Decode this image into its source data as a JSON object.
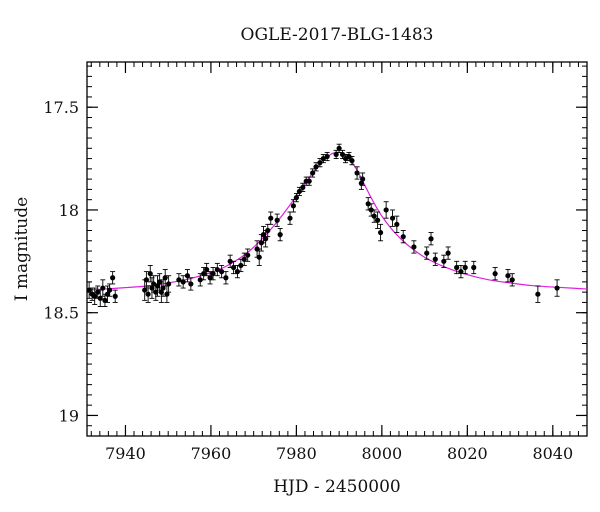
{
  "chart_data": {
    "type": "scatter",
    "title": "OGLE-2017-BLG-1483",
    "xlabel": "HJD - 2450000",
    "ylabel": "I magnitude",
    "xlim": [
      7931,
      8048
    ],
    "ylim": [
      19.1,
      17.28
    ],
    "y_inverted": true,
    "grid": false,
    "x_ticks": [
      7940,
      7960,
      7980,
      8000,
      8020,
      8040
    ],
    "x_tick_labels": [
      "7940",
      "7960",
      "7980",
      "8000",
      "8020",
      "8040"
    ],
    "y_ticks": [
      17.5,
      18,
      18.5,
      19
    ],
    "y_tick_labels": [
      "17.5",
      "18",
      "18.5",
      "19"
    ],
    "colors": {
      "points": "#000000",
      "model": "#e020e0",
      "axes": "#000000"
    },
    "series": [
      {
        "kind": "points_with_error_bars",
        "x": [
          7931.5,
          7932.2,
          7932.8,
          7933.5,
          7934.1,
          7934.7,
          7935.2,
          7935.8,
          7936.3,
          7937.0,
          7937.6,
          7944.5,
          7944.9,
          7945.3,
          7945.8,
          7946.2,
          7946.6,
          7947.1,
          7947.5,
          7948.0,
          7948.4,
          7948.8,
          7949.3,
          7949.7,
          7950.1,
          7952.5,
          7953.5,
          7954.5,
          7955.3,
          7957.5,
          7958.3,
          7959.0,
          7959.8,
          7960.5,
          7961.5,
          7962.5,
          7963.5,
          7964.5,
          7965.3,
          7966.2,
          7967.0,
          7967.8,
          7968.6,
          7970.8,
          7971.3,
          7971.8,
          7972.3,
          7972.8,
          7973.3,
          7974.0,
          7975.5,
          7976.2,
          7978.5,
          7979.3,
          7980.0,
          7980.7,
          7981.5,
          7982.3,
          7983.0,
          7983.8,
          7984.6,
          7985.5,
          7986.3,
          7987.2,
          7989.3,
          7990.0,
          7990.8,
          7991.5,
          7992.3,
          7993.0,
          7994.2,
          7995.2,
          7995.5,
          7996.8,
          7997.5,
          7998.2,
          7999.0,
          7999.7,
          8001.0,
          8002.5,
          8003.5,
          8005.0,
          8007.5,
          8010.5,
          8011.5,
          8012.5,
          8014.5,
          8015.5,
          8017.5,
          8018.5,
          8019.5,
          8021.5,
          8026.5,
          8029.5,
          8030.5,
          8036.5,
          8041.0
        ],
        "y": [
          18.39,
          18.41,
          18.42,
          18.4,
          18.43,
          18.38,
          18.44,
          18.41,
          18.39,
          18.33,
          18.42,
          18.39,
          18.34,
          18.41,
          18.31,
          18.38,
          18.36,
          18.4,
          18.37,
          18.35,
          18.4,
          18.38,
          18.33,
          18.41,
          18.36,
          18.34,
          18.35,
          18.32,
          18.36,
          18.34,
          18.31,
          18.29,
          18.33,
          18.31,
          18.29,
          18.3,
          18.33,
          18.25,
          18.28,
          18.3,
          18.27,
          18.24,
          18.22,
          18.19,
          18.23,
          18.16,
          18.12,
          18.14,
          18.1,
          18.04,
          18.05,
          18.12,
          18.04,
          17.98,
          17.94,
          17.91,
          17.89,
          17.86,
          17.86,
          17.82,
          17.79,
          17.77,
          17.75,
          17.74,
          17.73,
          17.7,
          17.73,
          17.75,
          17.74,
          17.76,
          17.82,
          17.87,
          17.85,
          17.97,
          18.0,
          18.03,
          18.05,
          18.11,
          18.0,
          18.04,
          18.07,
          18.13,
          18.18,
          18.21,
          18.14,
          18.24,
          18.25,
          18.21,
          18.28,
          18.3,
          18.28,
          18.28,
          18.31,
          18.32,
          18.34,
          18.41,
          18.38
        ],
        "err": [
          0.04,
          0.03,
          0.04,
          0.03,
          0.04,
          0.04,
          0.03,
          0.04,
          0.03,
          0.03,
          0.03,
          0.05,
          0.04,
          0.04,
          0.04,
          0.05,
          0.04,
          0.04,
          0.05,
          0.04,
          0.05,
          0.04,
          0.04,
          0.04,
          0.04,
          0.03,
          0.03,
          0.03,
          0.03,
          0.03,
          0.03,
          0.03,
          0.03,
          0.03,
          0.03,
          0.03,
          0.03,
          0.03,
          0.03,
          0.03,
          0.03,
          0.03,
          0.03,
          0.04,
          0.04,
          0.04,
          0.04,
          0.04,
          0.03,
          0.03,
          0.03,
          0.03,
          0.03,
          0.03,
          0.02,
          0.02,
          0.02,
          0.02,
          0.02,
          0.02,
          0.02,
          0.02,
          0.02,
          0.02,
          0.02,
          0.02,
          0.02,
          0.02,
          0.02,
          0.02,
          0.03,
          0.03,
          0.03,
          0.03,
          0.03,
          0.03,
          0.04,
          0.04,
          0.04,
          0.04,
          0.04,
          0.03,
          0.03,
          0.03,
          0.03,
          0.03,
          0.03,
          0.03,
          0.03,
          0.03,
          0.03,
          0.03,
          0.03,
          0.03,
          0.03,
          0.04,
          0.04
        ]
      },
      {
        "kind": "model_curve",
        "x": [
          7931,
          7935,
          7940,
          7945,
          7950,
          7955,
          7960,
          7963,
          7966,
          7969,
          7972,
          7975,
          7978,
          7980,
          7982,
          7984,
          7986,
          7988,
          7989,
          7990,
          7991,
          7992,
          7994,
          7996,
          7998,
          8000,
          8003,
          8006,
          8010,
          8015,
          8020,
          8025,
          8030,
          8035,
          8040,
          8045,
          8048
        ],
        "y": [
          18.39,
          18.385,
          18.378,
          18.37,
          18.355,
          18.335,
          18.305,
          18.28,
          18.245,
          18.2,
          18.14,
          18.07,
          17.99,
          17.93,
          17.87,
          17.815,
          17.765,
          17.73,
          17.722,
          17.72,
          17.725,
          17.74,
          17.8,
          17.88,
          17.96,
          18.03,
          18.11,
          18.17,
          18.23,
          18.28,
          18.315,
          18.34,
          18.355,
          18.368,
          18.375,
          18.381,
          18.385
        ]
      }
    ]
  }
}
